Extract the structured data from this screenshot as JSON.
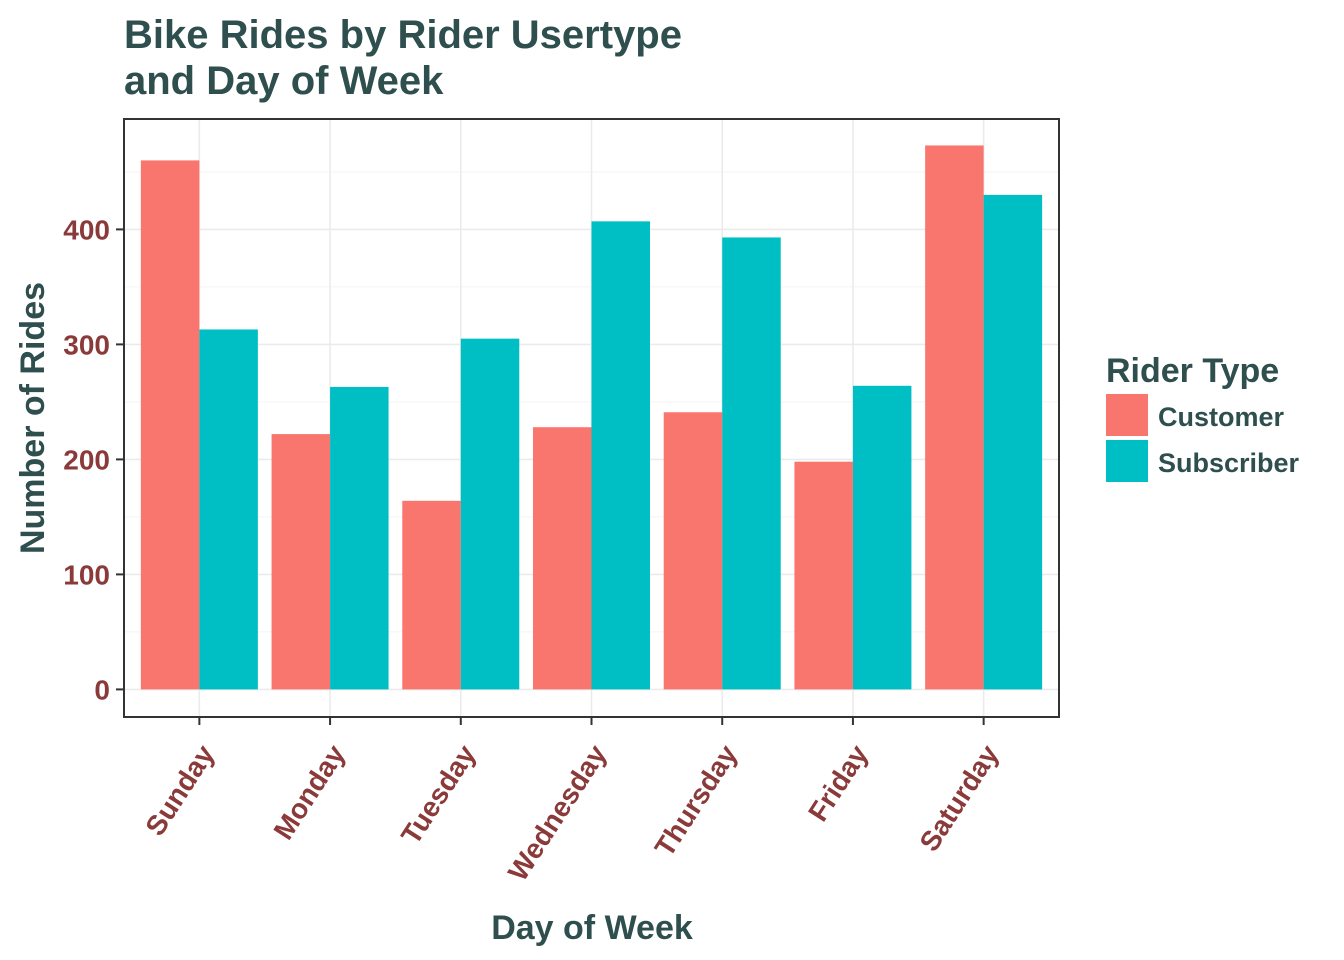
{
  "chart_data": {
    "type": "bar",
    "title_lines": [
      "Bike Rides by Rider Usertype",
      "and Day of Week"
    ],
    "xlabel": "Day of Week",
    "ylabel": "Number of Rides",
    "categories": [
      "Sunday",
      "Monday",
      "Tuesday",
      "Wednesday",
      "Thursday",
      "Friday",
      "Saturday"
    ],
    "series": [
      {
        "name": "Customer",
        "color": "#f8766d",
        "values": [
          460,
          222,
          164,
          228,
          241,
          198,
          473
        ]
      },
      {
        "name": "Subscriber",
        "color": "#00bfc4",
        "values": [
          313,
          263,
          305,
          407,
          393,
          264,
          430
        ]
      }
    ],
    "ylim": [
      -24,
      496
    ],
    "yticks": [
      0,
      100,
      200,
      300,
      400
    ],
    "grid": true,
    "legend": {
      "title": "Rider Type",
      "position": "right"
    }
  }
}
